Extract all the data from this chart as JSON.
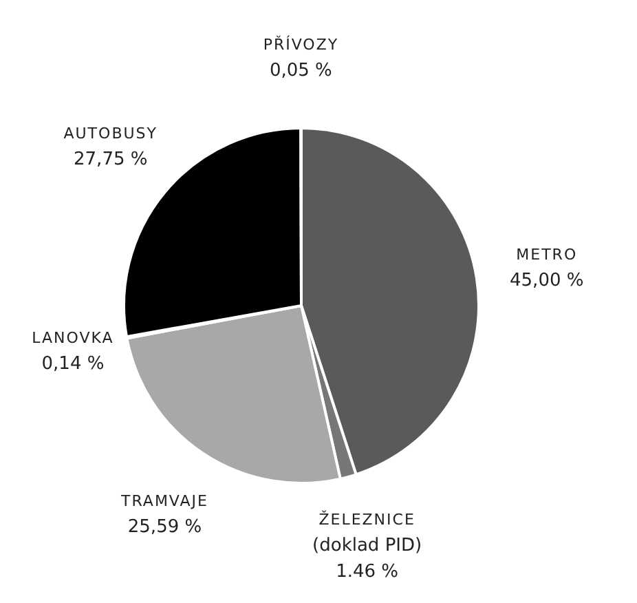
{
  "chart_data": {
    "type": "pie",
    "categories": [
      "METRO",
      "ŽELEZNICE (doklad PID)",
      "TRAMVAJE",
      "LANOVKA",
      "AUTOBUSY",
      "PŘÍVOZY"
    ],
    "values": [
      45.0,
      1.46,
      25.59,
      0.14,
      27.75,
      0.05
    ],
    "colors": [
      "#5a5a5c",
      "#77777a",
      "#a8a8aa",
      "#cfcfd0",
      "#000000",
      "#8a8a8a"
    ],
    "value_labels": [
      "45,00 %",
      "1.46 %",
      "25,59 %",
      "0,14 %",
      "27,75 %",
      "0,05 %"
    ]
  }
}
